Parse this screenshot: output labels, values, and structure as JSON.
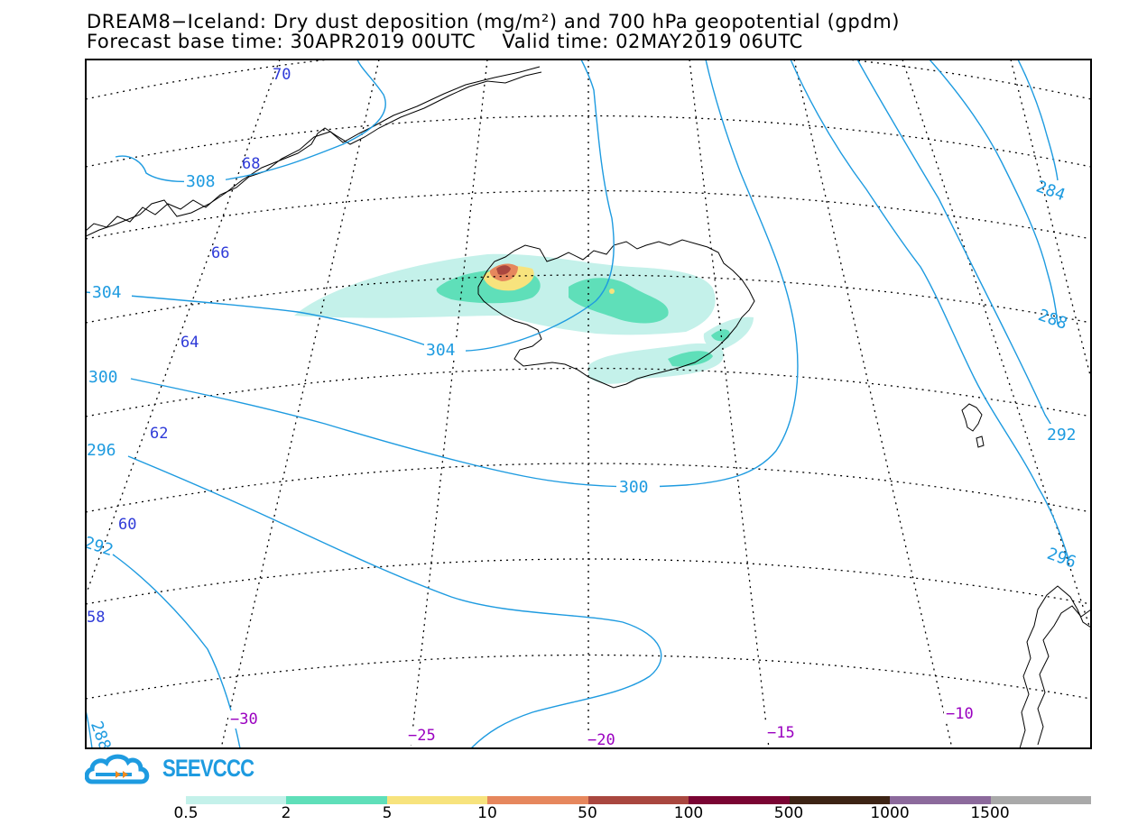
{
  "title": {
    "line1": "DREAM8−Iceland: Dry dust deposition (mg/m²) and 700 hPa geopotential (gpdm)",
    "base_time_label": "Forecast base time: 30APR2019 00UTC",
    "valid_time_label": "Valid time: 02MAY2019 06UTC"
  },
  "map": {
    "region": "Iceland",
    "variable": "Dry dust deposition",
    "units": "mg/m²",
    "contour_variable": "700 hPa geopotential",
    "contour_units": "gpdm",
    "contour_color": "#1e9be0",
    "graticule_style": "dotted",
    "geopotential_labels": [
      "308",
      "304",
      "304",
      "300",
      "300",
      "296",
      "292",
      "288",
      "284",
      "288",
      "292",
      "296"
    ],
    "latitude_labels": [
      "70",
      "68",
      "66",
      "64",
      "62",
      "60",
      "58"
    ],
    "longitude_labels": [
      "−30",
      "−25",
      "−20",
      "−15",
      "−10"
    ],
    "latitude_label_color": "#2e3ad8",
    "longitude_label_color": "#9a00c0",
    "dust_plume": "west and south Iceland, over Snaefellsnes and Faxafloi"
  },
  "logo": {
    "name": "SEEVCCC",
    "color": "#1e9be0"
  },
  "colorbar": {
    "colors": [
      "#c4f1ea",
      "#5fdfb9",
      "#f7e37d",
      "#e6875d",
      "#a9473f",
      "#7a0433",
      "#3d2415",
      "#8c6a9c",
      "#a9a9a9"
    ],
    "labels": [
      "0.5",
      "2",
      "5",
      "10",
      "50",
      "100",
      "500",
      "1000",
      "1500"
    ]
  }
}
